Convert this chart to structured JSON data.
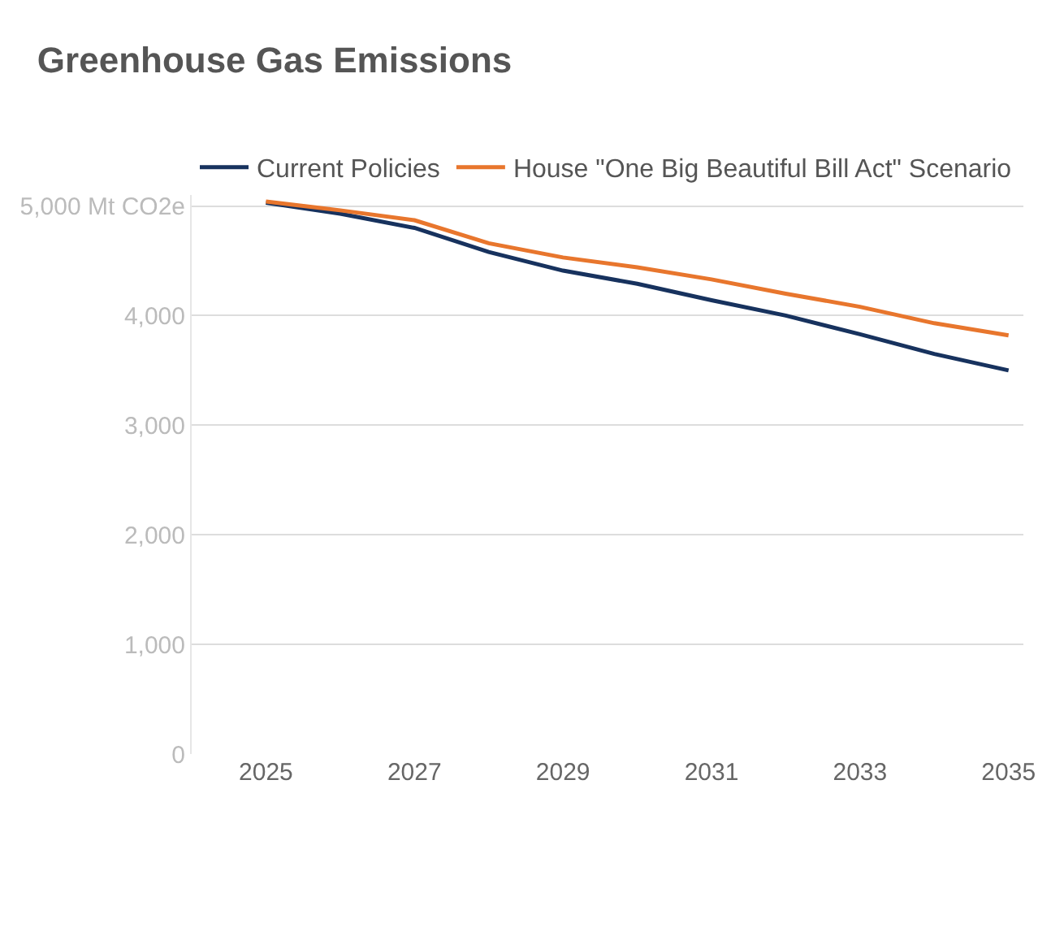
{
  "chart_data": {
    "type": "line",
    "title": "Greenhouse Gas Emissions",
    "x": [
      2025,
      2026,
      2027,
      2028,
      2029,
      2030,
      2031,
      2032,
      2033,
      2034,
      2035
    ],
    "series": [
      {
        "name": "Current Policies",
        "color": "#17325e",
        "values": [
          5030,
          4930,
          4800,
          4580,
          4410,
          4290,
          4140,
          4000,
          3830,
          3650,
          3500
        ]
      },
      {
        "name": "House \"One Big Beautiful Bill Act\" Scenario",
        "color": "#e8762d",
        "values": [
          5040,
          4960,
          4870,
          4660,
          4530,
          4440,
          4330,
          4200,
          4080,
          3930,
          3820
        ]
      }
    ],
    "xlim": [
      2024,
      2035.2
    ],
    "xticks": [
      2025,
      2027,
      2029,
      2031,
      2033,
      2035
    ],
    "ylim": [
      0,
      5100
    ],
    "yticks": [
      0,
      {
        "value": 1000,
        "label": "1,000"
      },
      {
        "value": 2000,
        "label": "2,000"
      },
      {
        "value": 3000,
        "label": "3,000"
      },
      {
        "value": 4000,
        "label": "4,000"
      },
      {
        "value": 5000,
        "label": "5,000 Mt CO2e"
      }
    ],
    "grid": "y",
    "legend": "top left",
    "marker": "none",
    "line_style": "solid"
  }
}
